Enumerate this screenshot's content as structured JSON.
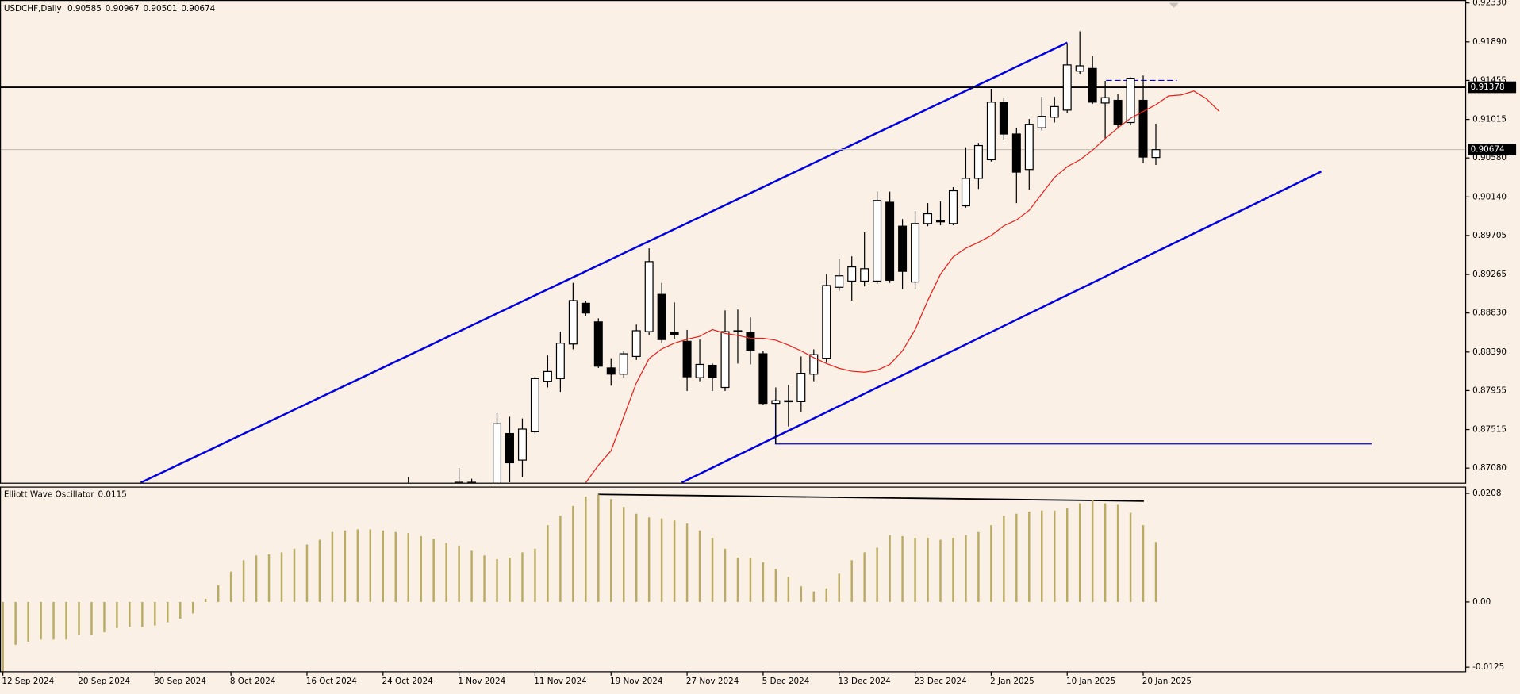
{
  "chart_data": {
    "type": "candlestick",
    "title": "USDCHF,Daily",
    "categories": [
      "12 Sep 2024",
      null,
      null,
      null,
      null,
      null,
      "20 Sep 2024",
      null,
      null,
      null,
      null,
      null,
      "30 Sep 2024",
      null,
      null,
      null,
      null,
      null,
      "8 Oct 2024",
      null,
      null,
      null,
      null,
      null,
      "16 Oct 2024",
      null,
      null,
      null,
      null,
      null,
      "24 Oct 2024",
      null,
      null,
      null,
      null,
      null,
      "1 Nov 2024",
      null,
      null,
      null,
      null,
      null,
      "11 Nov 2024",
      null,
      null,
      null,
      null,
      null,
      "19 Nov 2024",
      null,
      null,
      null,
      null,
      null,
      "27 Nov 2024",
      null,
      null,
      null,
      null,
      null,
      "5 Dec 2024",
      null,
      null,
      null,
      null,
      null,
      "13 Dec 2024",
      null,
      null,
      null,
      null,
      null,
      "23 Dec 2024",
      null,
      null,
      null,
      null,
      null,
      "2 Jan 2025",
      null,
      null,
      null,
      null,
      null,
      "10 Jan 2025",
      null,
      null,
      null,
      null,
      null,
      "20 Jan 2025",
      null,
      null,
      null,
      null,
      null,
      null
    ],
    "open": [
      null,
      null,
      null,
      null,
      null,
      null,
      null,
      null,
      null,
      null,
      null,
      null,
      null,
      null,
      null,
      null,
      null,
      null,
      null,
      null,
      null,
      null,
      null,
      null,
      null,
      null,
      null,
      null,
      null,
      null,
      null,
      null,
      0.8675,
      0.8672,
      0.8678,
      0.867,
      0.868,
      0.8692,
      0.8668,
      0.867,
      0.8747,
      0.8717,
      0.8749,
      0.8806,
      0.8809,
      0.8848,
      0.8894,
      0.8873,
      0.8821,
      0.8814,
      0.8834,
      0.8862,
      0.8904,
      0.8861,
      0.8851,
      0.881,
      0.8824,
      0.8799,
      0.8863,
      0.8861,
      0.8837,
      0.8781,
      0.8783,
      0.8783,
      0.8814,
      0.8832,
      0.8912,
      0.8919,
      0.8919,
      0.8919,
      0.9008,
      0.8981,
      0.8918,
      0.8984,
      0.8987,
      0.8984,
      0.9004,
      0.9035,
      0.9056,
      0.9121,
      0.9085,
      0.9045,
      0.9092,
      0.9104,
      0.9112,
      0.9156,
      0.9159,
      0.912,
      0.9123,
      0.9098,
      0.9123,
      0.90585,
      null,
      null,
      null,
      null,
      null
    ],
    "high": [
      null,
      null,
      null,
      null,
      null,
      null,
      null,
      null,
      null,
      null,
      null,
      null,
      null,
      null,
      null,
      null,
      null,
      null,
      null,
      null,
      null,
      null,
      null,
      null,
      null,
      null,
      null,
      null,
      null,
      null,
      null,
      null,
      0.8698,
      0.8685,
      0.869,
      0.8688,
      0.8708,
      0.8696,
      0.868,
      0.877,
      0.8766,
      0.8764,
      0.8811,
      0.8835,
      0.8862,
      0.8917,
      0.8897,
      0.8877,
      0.8832,
      0.884,
      0.887,
      0.8956,
      0.8917,
      0.8895,
      0.8864,
      0.8853,
      0.8826,
      0.8886,
      0.8887,
      0.8878,
      0.884,
      0.8799,
      0.8802,
      0.8834,
      0.8842,
      0.8927,
      0.8944,
      0.8947,
      0.8974,
      0.902,
      0.902,
      0.8989,
      0.8998,
      0.9007,
      0.9009,
      0.9025,
      0.907,
      0.9075,
      0.9136,
      0.9126,
      0.9092,
      0.9102,
      0.9127,
      0.9127,
      0.9187,
      0.9201,
      0.9173,
      0.9145,
      0.913,
      0.9149,
      0.9151,
      0.90967,
      null,
      null,
      null,
      null,
      null
    ],
    "low": [
      null,
      null,
      null,
      null,
      null,
      null,
      null,
      null,
      null,
      null,
      null,
      null,
      null,
      null,
      null,
      null,
      null,
      null,
      null,
      null,
      null,
      null,
      null,
      null,
      null,
      null,
      null,
      null,
      null,
      null,
      null,
      null,
      0.8668,
      0.866,
      0.8665,
      0.8662,
      0.8672,
      0.8662,
      0.8655,
      0.8665,
      0.8692,
      0.8698,
      0.8747,
      0.8799,
      0.8794,
      0.8842,
      0.888,
      0.8821,
      0.8801,
      0.881,
      0.883,
      0.8858,
      0.8849,
      0.8854,
      0.8795,
      0.8806,
      0.8795,
      0.8795,
      0.8826,
      0.8825,
      0.8779,
      0.8735,
      0.8755,
      0.8771,
      0.8806,
      0.8827,
      0.8908,
      0.8897,
      0.8913,
      0.8916,
      0.8917,
      0.891,
      0.891,
      0.8981,
      0.8982,
      0.8982,
      0.9002,
      0.9023,
      0.9054,
      0.9078,
      0.9007,
      0.9022,
      0.9089,
      0.9098,
      0.9109,
      0.9153,
      0.9119,
      0.908,
      0.9091,
      0.9095,
      0.9052,
      0.90501,
      null,
      null,
      null,
      null,
      null
    ],
    "close": [
      null,
      null,
      null,
      null,
      null,
      null,
      null,
      null,
      null,
      null,
      null,
      null,
      null,
      null,
      null,
      null,
      null,
      null,
      null,
      null,
      null,
      null,
      null,
      null,
      null,
      null,
      null,
      null,
      null,
      null,
      null,
      null,
      0.8688,
      0.8678,
      0.867,
      0.8684,
      0.8692,
      0.8668,
      0.8672,
      0.8758,
      0.8714,
      0.8752,
      0.8809,
      0.8817,
      0.8849,
      0.8897,
      0.8883,
      0.8823,
      0.8814,
      0.8837,
      0.8863,
      0.8941,
      0.8853,
      0.8859,
      0.8811,
      0.8825,
      0.881,
      0.8862,
      0.8862,
      0.8841,
      0.8781,
      0.8784,
      0.8784,
      0.8815,
      0.8836,
      0.8914,
      0.8925,
      0.8935,
      0.8933,
      0.901,
      0.892,
      0.893,
      0.8984,
      0.8995,
      0.8986,
      0.9021,
      0.9035,
      0.9072,
      0.9121,
      0.9085,
      0.9042,
      0.9096,
      0.9105,
      0.9116,
      0.9163,
      0.9162,
      0.9121,
      0.9126,
      0.9096,
      0.9148,
      0.9059,
      0.90674,
      null,
      null,
      null,
      null,
      null
    ],
    "up_color": "#ffffff",
    "down_color": "#000000",
    "ma": {
      "color": "#e8201a",
      "values": [
        null,
        null,
        null,
        null,
        null,
        null,
        null,
        null,
        null,
        null,
        null,
        null,
        null,
        null,
        null,
        null,
        null,
        null,
        null,
        null,
        null,
        null,
        null,
        null,
        null,
        null,
        null,
        null,
        null,
        null,
        null,
        null,
        null,
        null,
        null,
        null,
        null,
        null,
        null,
        null,
        null,
        null,
        null,
        null,
        null,
        null,
        0.86915,
        0.87112,
        0.87276,
        0.87659,
        0.88042,
        0.88315,
        0.88425,
        0.8849,
        0.88534,
        0.88567,
        0.88643,
        0.886,
        0.88578,
        0.88545,
        0.88545,
        0.88523,
        0.88468,
        0.88403,
        0.88326,
        0.8826,
        0.88206,
        0.88173,
        0.88162,
        0.88184,
        0.8825,
        0.88403,
        0.88643,
        0.88972,
        0.89267,
        0.89464,
        0.89562,
        0.89628,
        0.89705,
        0.89814,
        0.8988,
        0.89989,
        0.90175,
        0.90361,
        0.90481,
        0.90558,
        0.90667,
        0.90799,
        0.90919,
        0.91028,
        0.91105,
        0.91181,
        0.9128,
        0.91291,
        0.91335,
        0.91247,
        0.91105
      ]
    },
    "hline": {
      "value": 0.91378,
      "color": "#000000"
    },
    "ylim": [
      0.86915,
      0.92363
    ],
    "yticks": [
      {
        "value": 0.9233,
        "label": "0.92330"
      },
      {
        "value": 0.9189,
        "label": "0.91890"
      },
      0.91455,
      {
        "value": 0.91015,
        "label": "0.91015"
      },
      {
        "value": 0.9058,
        "label": "0.90580"
      },
      {
        "value": 0.9014,
        "label": "0.90140"
      },
      0.89705,
      0.89265,
      {
        "value": 0.8883,
        "label": "0.88830"
      },
      {
        "value": 0.8839,
        "label": "0.88390"
      },
      0.87955,
      0.87515,
      {
        "value": 0.8708,
        "label": "0.87080"
      }
    ],
    "indicator": {
      "type": "bar",
      "name": "Elliott Wave Oscillator",
      "color": "#b9ab62",
      "values": [
        -0.0141,
        -0.0082,
        -0.0076,
        -0.0072,
        -0.0072,
        -0.0072,
        -0.0063,
        -0.0063,
        -0.0058,
        -0.005,
        -0.0048,
        -0.0048,
        -0.0045,
        -0.0039,
        -0.0032,
        -0.0022,
        0.0006,
        0.0032,
        0.0058,
        0.008,
        0.0089,
        0.0091,
        0.0095,
        0.0102,
        0.011,
        0.0119,
        0.0134,
        0.0137,
        0.0139,
        0.0139,
        0.0137,
        0.0134,
        0.0132,
        0.0126,
        0.0121,
        0.0113,
        0.0108,
        0.0098,
        0.0089,
        0.0082,
        0.0085,
        0.0095,
        0.0102,
        0.0147,
        0.0165,
        0.0184,
        0.0202,
        0.0206,
        0.0197,
        0.0182,
        0.0169,
        0.0162,
        0.016,
        0.0156,
        0.015,
        0.0137,
        0.0123,
        0.0102,
        0.0085,
        0.0084,
        0.0076,
        0.0063,
        0.0048,
        0.003,
        0.002,
        0.0026,
        0.0054,
        0.008,
        0.0095,
        0.0104,
        0.0128,
        0.0126,
        0.0123,
        0.0123,
        0.0119,
        0.0123,
        0.0128,
        0.0134,
        0.0147,
        0.0165,
        0.0169,
        0.0173,
        0.0175,
        0.0175,
        0.018,
        0.0189,
        0.0195,
        0.0189,
        0.0186,
        0.0171,
        0.0147,
        0.0115,
        null,
        null,
        null,
        null,
        null
      ],
      "ylim": [
        -0.01337,
        0.0221
      ],
      "yticks": [
        0.0208,
        {
          "value": 0,
          "label": "0.00"
        },
        -0.0125
      ]
    }
  }
}
